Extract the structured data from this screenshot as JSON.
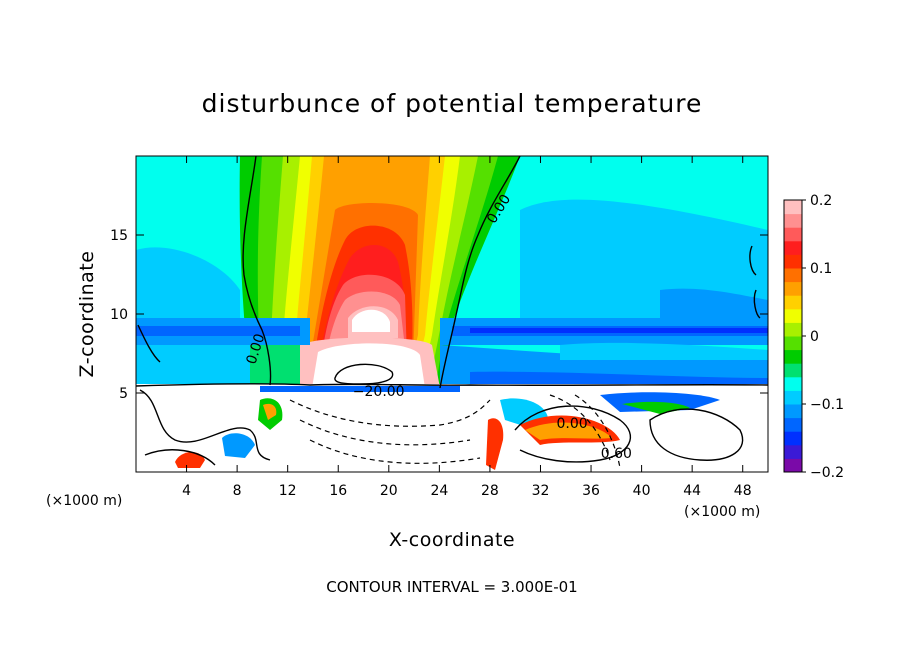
{
  "chart_data": {
    "type": "heatmap",
    "title": "disturbunce of potential temperature",
    "xlabel": "X-coordinate",
    "ylabel": "Z-coordinate",
    "x_unit": "(×1000 m)",
    "x_unit_right": "(×1000 m)",
    "xlim": [
      0,
      50
    ],
    "ylim": [
      0,
      20
    ],
    "x_ticks": [
      "4",
      "8",
      "12",
      "16",
      "20",
      "24",
      "28",
      "32",
      "36",
      "40",
      "44",
      "48"
    ],
    "y_ticks": [
      "5",
      "10",
      "15"
    ],
    "x_tick_values": [
      4,
      8,
      12,
      16,
      20,
      24,
      28,
      32,
      36,
      40,
      44,
      48
    ],
    "y_tick_values": [
      5,
      10,
      15
    ],
    "colorbar": {
      "range": [
        -0.2,
        0.2
      ],
      "labels": [
        "0.2",
        "0.1",
        "0",
        "−0.1",
        "−0.2"
      ],
      "label_values": [
        0.2,
        0.1,
        0,
        -0.1,
        -0.2
      ],
      "colors": [
        "#7a0aa8",
        "#3b1ad6",
        "#0030ff",
        "#0066ff",
        "#0099ff",
        "#00ccff",
        "#00ffee",
        "#00e070",
        "#00cc00",
        "#55e000",
        "#a8f000",
        "#f0ff00",
        "#ffd000",
        "#ffa000",
        "#ff7000",
        "#ff3000",
        "#ff1e1e",
        "#ff5a5a",
        "#ff9090",
        "#ffc0c0"
      ]
    },
    "contour_labels": [
      {
        "text": "0.00",
        "x": 29.0,
        "z": 16.5,
        "rot": -58
      },
      {
        "text": "0.00",
        "x": 9.8,
        "z": 7.7,
        "rot": -72
      },
      {
        "text": "−20.00",
        "x": 19.2,
        "z": 4.8,
        "rot": 0
      },
      {
        "text": "0.00",
        "x": 34.5,
        "z": 2.8,
        "rot": 0
      },
      {
        "text": "0.60",
        "x": 38.0,
        "z": 0.9,
        "rot": 0
      }
    ],
    "contour_interval": "CONTOUR INTERVAL = 3.000E-01"
  }
}
